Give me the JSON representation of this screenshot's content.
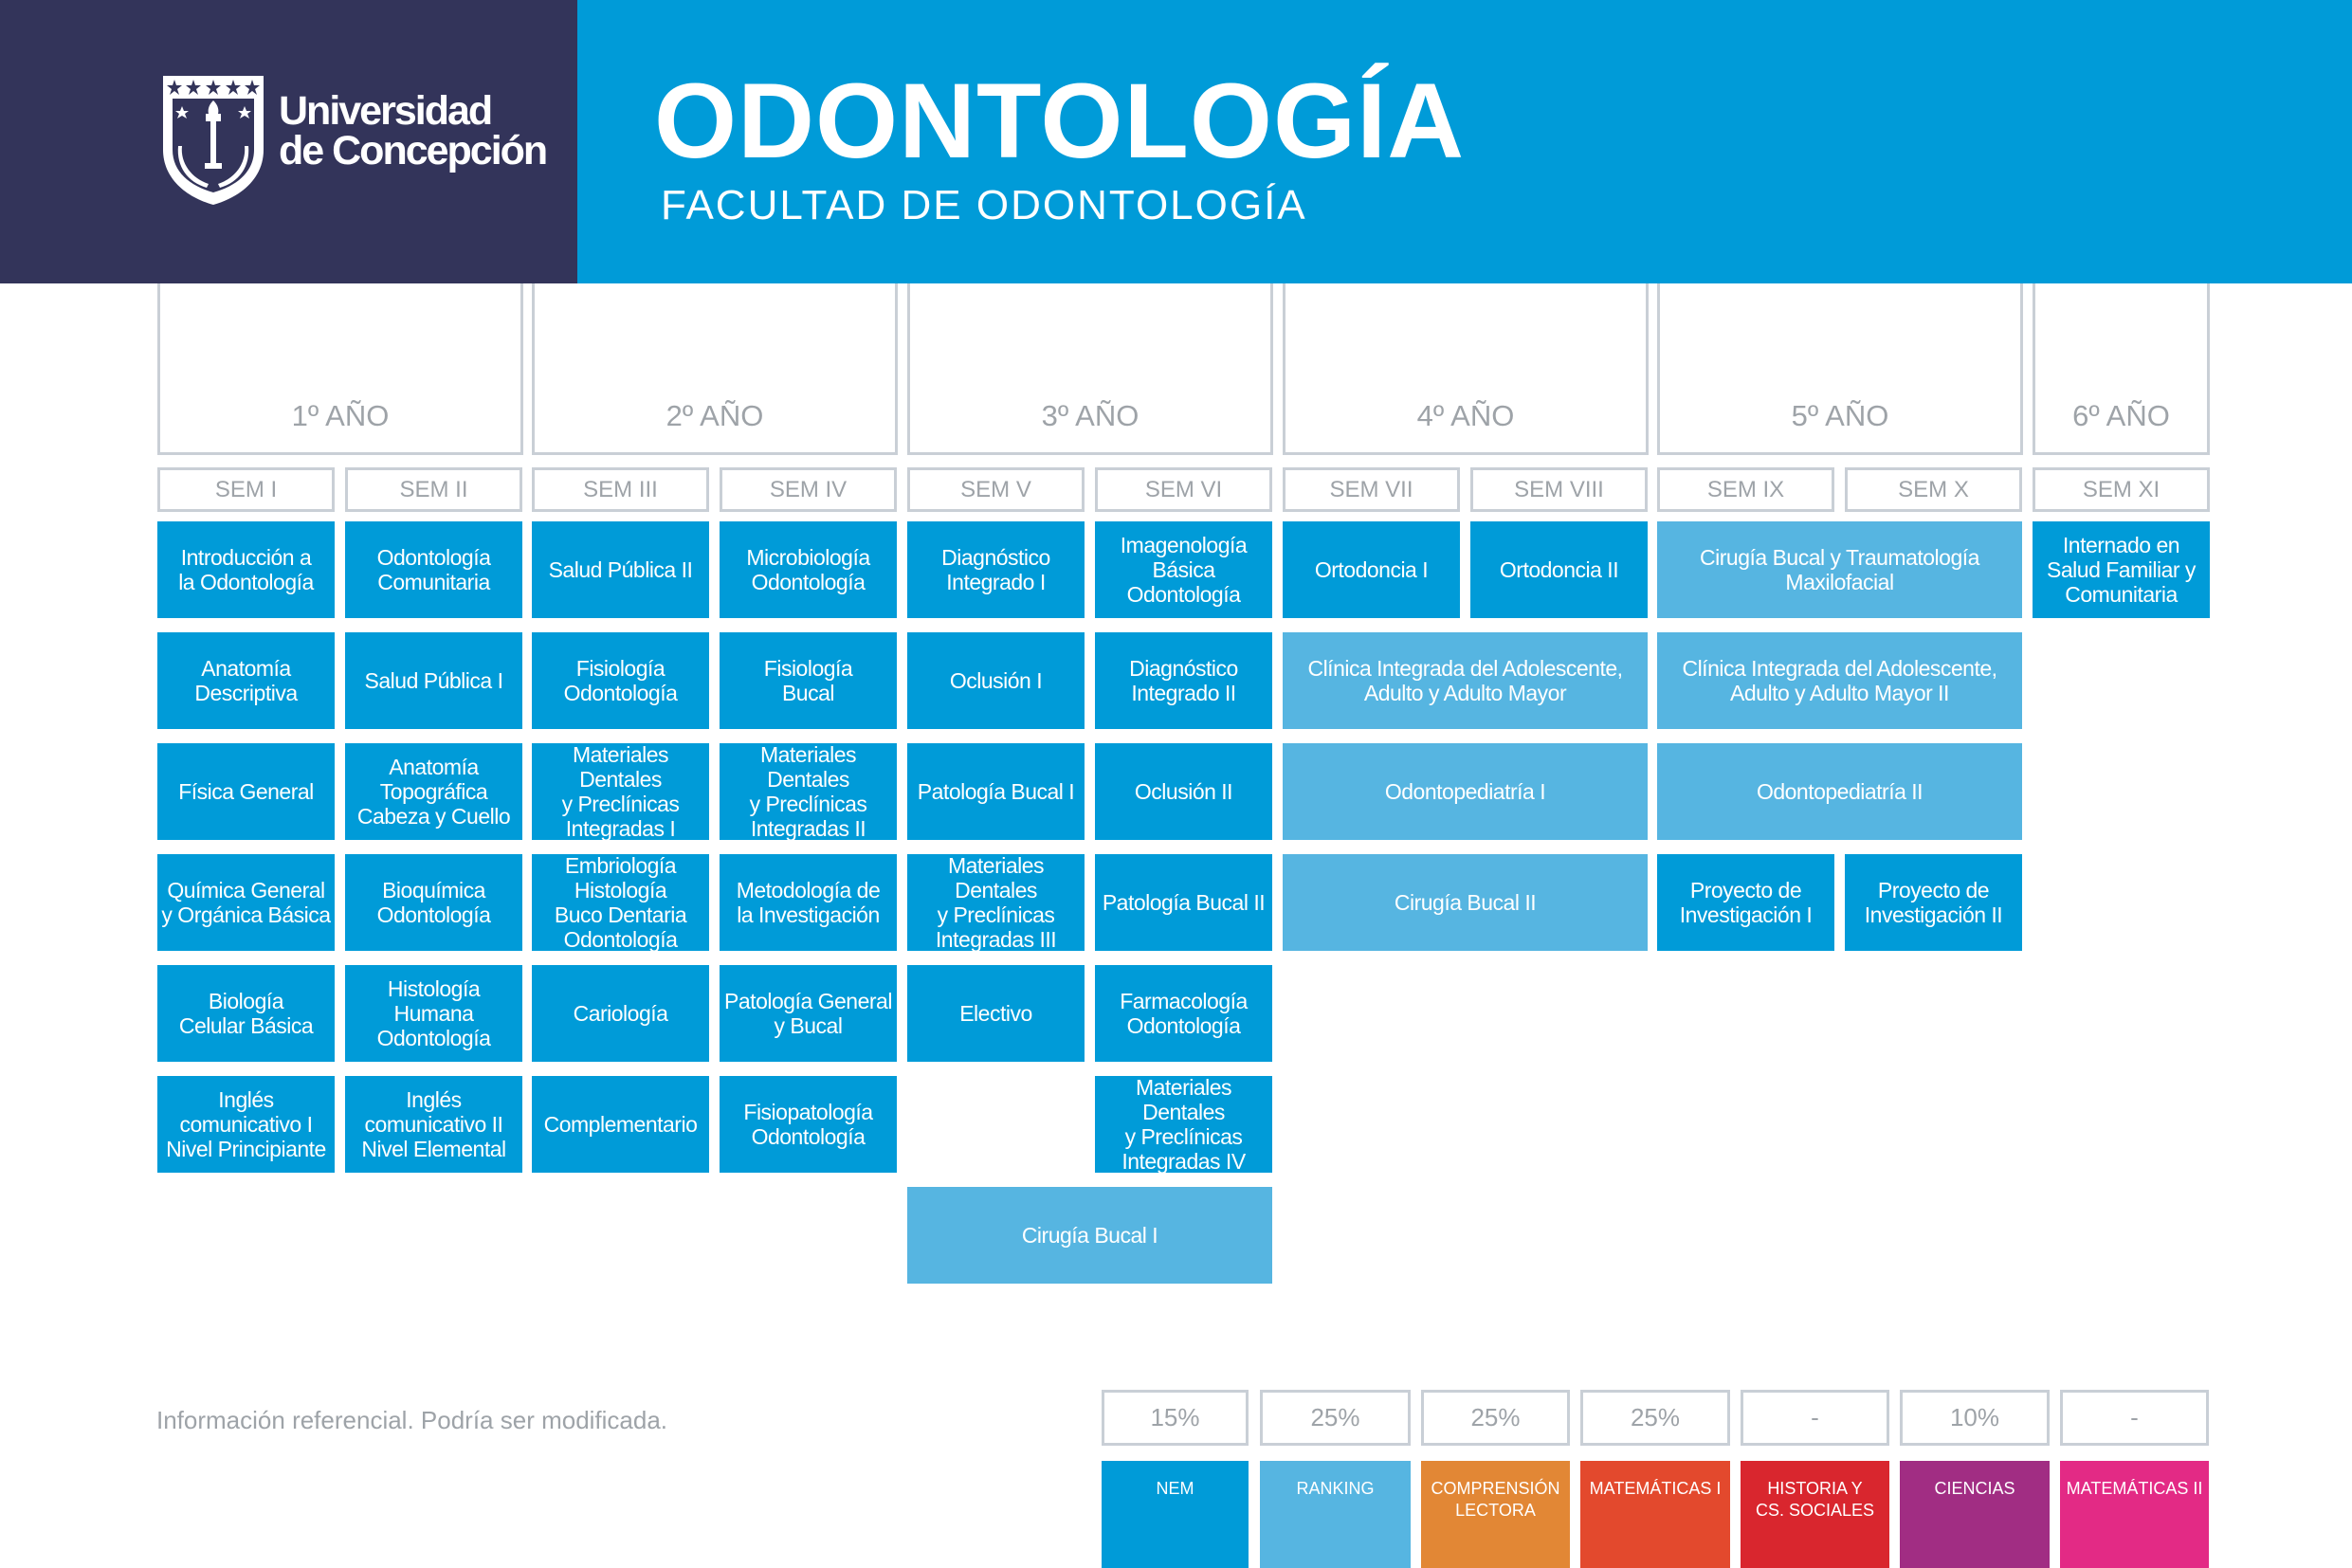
{
  "header": {
    "logo_line1": "Universidad",
    "logo_line2": "de Concepción",
    "title": "ODONTOLOGÍA",
    "subtitle": "FACULTAD DE ODONTOLOGÍA",
    "left_color": "#33345a",
    "right_color": "#009bd8"
  },
  "years": [
    "1º AÑO",
    "2º AÑO",
    "3º AÑO",
    "4º AÑO",
    "5º AÑO",
    "6º AÑO"
  ],
  "semesters": [
    "SEM I",
    "SEM II",
    "SEM III",
    "SEM IV",
    "SEM V",
    "SEM VI",
    "SEM VII",
    "SEM VIII",
    "SEM IX",
    "SEM X",
    "SEM XI"
  ],
  "courses": {
    "c1": "Introducción a\nla Odontología",
    "c2": "Anatomía\nDescriptiva",
    "c3": "Física General",
    "c4": "Química General\ny Orgánica Básica",
    "c5": "Biología\nCelular Básica",
    "c6": "Inglés\ncomunicativo I\nNivel Principiante",
    "c7": "Odontología\nComunitaria",
    "c8": "Salud Pública I",
    "c9": "Anatomía\nTopográfica\nCabeza y Cuello",
    "c10": "Bioquímica\nOdontología",
    "c11": "Histología\nHumana\nOdontología",
    "c12": "Inglés\ncomunicativo II\nNivel Elemental",
    "c13": "Salud Pública II",
    "c14": "Fisiología\nOdontología",
    "c15": "Materiales Dentales\ny Preclínicas\nIntegradas I",
    "c16": "Embriología\nHistología\nBuco Dentaria\nOdontología",
    "c17": "Cariología",
    "c18": "Complementario",
    "c19": "Microbiología\nOdontología",
    "c20": "Fisiología\nBucal",
    "c21": "Materiales Dentales\ny Preclínicas\nIntegradas II",
    "c22": "Metodología de\nla Investigación",
    "c23": "Patología General\ny Bucal",
    "c24": "Fisiopatología\nOdontología",
    "c25": "Diagnóstico\nIntegrado I",
    "c26": "Oclusión I",
    "c27": "Patología Bucal I",
    "c28": "Materiales Dentales\ny Preclínicas\nIntegradas III",
    "c29": "Electivo",
    "c30": "Imagenología\nBásica Odontología",
    "c31": "Diagnóstico\nIntegrado II",
    "c32": "Oclusión II",
    "c33": "Patología Bucal II",
    "c34": "Farmacología\nOdontología",
    "c35": "Materiales Dentales\ny Preclínicas\nIntegradas IV",
    "c36": "Cirugía Bucal I",
    "c37": "Ortodoncia I",
    "c38": "Ortodoncia II",
    "c39": "Clínica Integrada del Adolescente,\nAdulto y Adulto Mayor",
    "c40": "Odontopediatría I",
    "c41": "Cirugía Bucal II",
    "c42": "Cirugía Bucal y Traumatología\nMaxilofacial",
    "c43": "Clínica Integrada del Adolescente,\nAdulto y Adulto Mayor II",
    "c44": "Odontopediatría II",
    "c45": "Proyecto de\nInvestigación I",
    "c46": "Proyecto de\nInvestigación II",
    "c47": "Internado en\nSalud Familiar y\nComunitaria"
  },
  "course_colors": {
    "dark": "#009bd8",
    "light": "#56b5e1"
  },
  "disclaimer": "Información referencial. Podría ser modificada.",
  "admission": [
    {
      "percent": "15%",
      "label": "NEM",
      "color": "#009bd8"
    },
    {
      "percent": "25%",
      "label": "RANKING",
      "color": "#56b5e1"
    },
    {
      "percent": "25%",
      "label": "COMPRENSIÓN\nLECTORA",
      "color": "#e28735"
    },
    {
      "percent": "25%",
      "label": "MATEMÁTICAS  I",
      "color": "#e3492d"
    },
    {
      "percent": "-",
      "label": "HISTORIA Y\nCS. SOCIALES",
      "color": "#d9262e"
    },
    {
      "percent": "10%",
      "label": "CIENCIAS",
      "color": "#a12d83"
    },
    {
      "percent": "-",
      "label": "MATEMÁTICAS II",
      "color": "#e32a85"
    }
  ]
}
